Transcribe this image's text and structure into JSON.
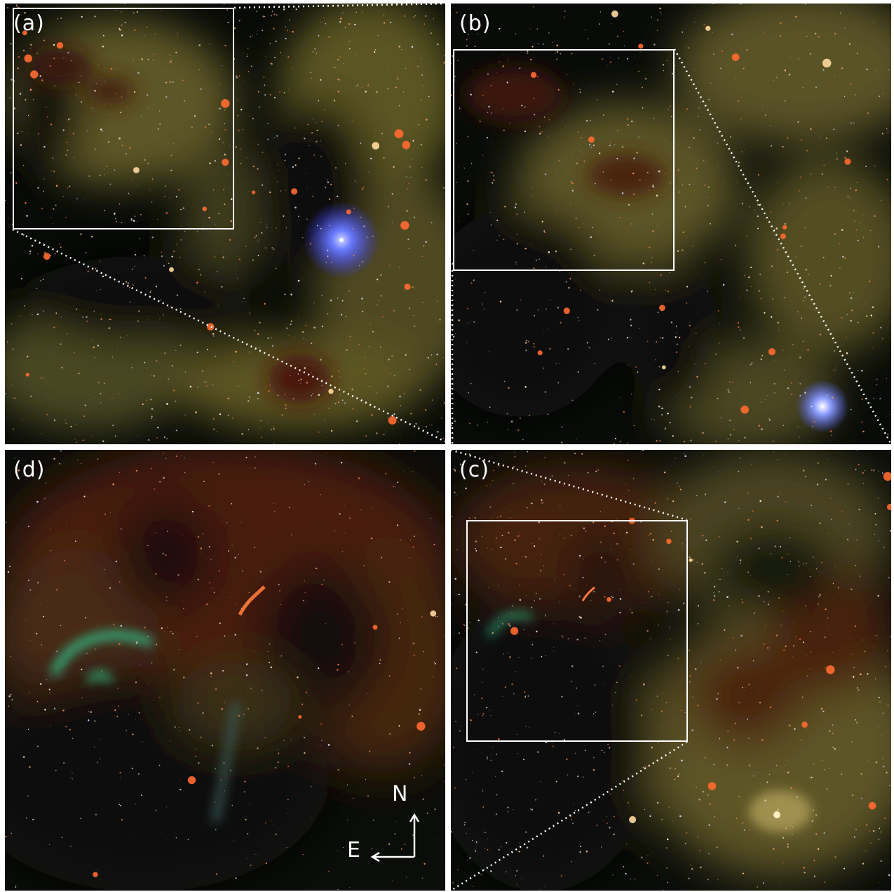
{
  "panels": {
    "a": {
      "label": "(a)"
    },
    "b": {
      "label": "(b)"
    },
    "c": {
      "label": "(c)"
    },
    "d": {
      "label": "(d)"
    }
  },
  "compass": {
    "north": "N",
    "east": "E"
  },
  "colors": {
    "background": "#060a07",
    "nebula": "#6b6328",
    "dark_cloud": "#3a1208",
    "star_warm": "#ff7a3a",
    "blue_star": "#5a78ff",
    "green_arc": "#2fd49a",
    "frame": "#ffffff"
  }
}
